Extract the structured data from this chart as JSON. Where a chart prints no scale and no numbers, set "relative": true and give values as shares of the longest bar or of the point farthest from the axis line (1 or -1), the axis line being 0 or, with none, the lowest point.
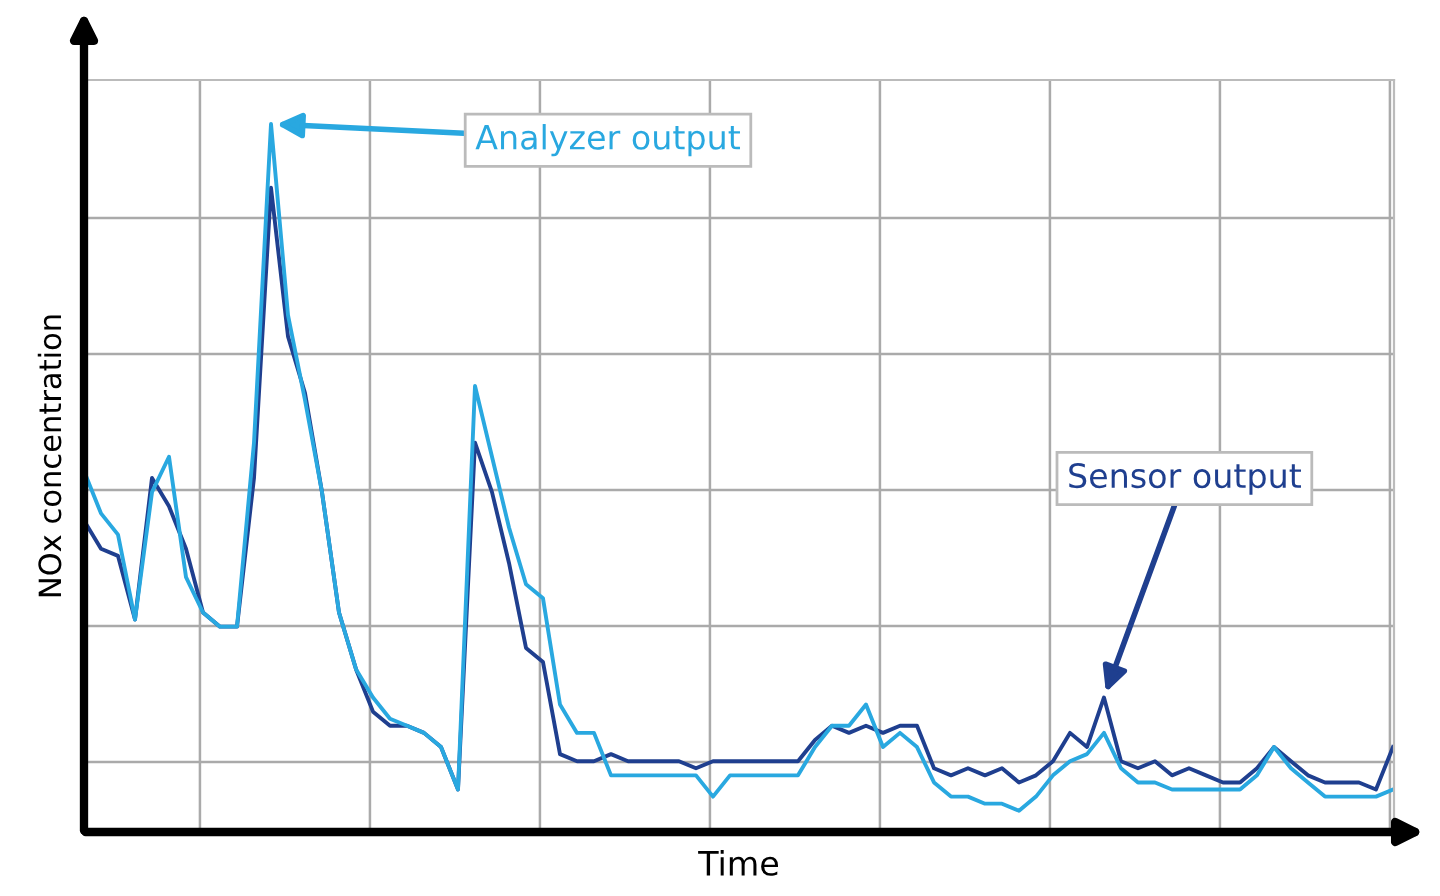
{
  "chart_data": {
    "type": "line",
    "relative": true,
    "xlabel": "Time",
    "ylabel": "NOx concentration",
    "grid": true,
    "legend": false,
    "marker": "none",
    "line_style": "solid",
    "categories": [
      null,
      null,
      null,
      null,
      null,
      null,
      null,
      null,
      null,
      null,
      null,
      null,
      null,
      null,
      null,
      null,
      null,
      null,
      null,
      null,
      null,
      null,
      null,
      null,
      null,
      null,
      null,
      null,
      null,
      null,
      null,
      null,
      null,
      null,
      null,
      null,
      null,
      null,
      null,
      null,
      null,
      null,
      null,
      null,
      null,
      null,
      null,
      null,
      null,
      null,
      null,
      null,
      null,
      null,
      null,
      null,
      null,
      null,
      null,
      null,
      null,
      null,
      null,
      null,
      null,
      null,
      null,
      null,
      null,
      null,
      null,
      null,
      null,
      null,
      null,
      null,
      null,
      null
    ],
    "series": [
      {
        "name": "Sensor output",
        "color": "#1f3f8f",
        "values": [
          0.44,
          0.4,
          0.39,
          0.3,
          0.5,
          0.46,
          0.4,
          0.31,
          0.29,
          0.29,
          0.5,
          0.91,
          0.7,
          0.62,
          0.48,
          0.31,
          0.23,
          0.17,
          0.15,
          0.15,
          0.14,
          0.12,
          0.06,
          0.55,
          0.48,
          0.38,
          0.26,
          0.24,
          0.11,
          0.1,
          0.1,
          0.11,
          0.1,
          0.1,
          0.1,
          0.1,
          0.09,
          0.1,
          0.1,
          0.1,
          0.1,
          0.1,
          0.1,
          0.13,
          0.15,
          0.14,
          0.15,
          0.14,
          0.15,
          0.15,
          0.09,
          0.08,
          0.09,
          0.08,
          0.09,
          0.07,
          0.08,
          0.1,
          0.14,
          0.12,
          0.19,
          0.1,
          0.09,
          0.1,
          0.08,
          0.09,
          0.08,
          0.07,
          0.07,
          0.09,
          0.12,
          0.1,
          0.08,
          0.07,
          0.07,
          0.07,
          0.06,
          0.12
        ]
      },
      {
        "name": "Analyzer output",
        "color": "#29a8e0",
        "values": [
          0.51,
          0.45,
          0.42,
          0.3,
          0.48,
          0.53,
          0.36,
          0.31,
          0.29,
          0.29,
          0.55,
          1.0,
          0.73,
          0.61,
          0.48,
          0.31,
          0.23,
          0.19,
          0.16,
          0.15,
          0.14,
          0.12,
          0.06,
          0.63,
          0.53,
          0.43,
          0.35,
          0.33,
          0.18,
          0.14,
          0.14,
          0.08,
          0.08,
          0.08,
          0.08,
          0.08,
          0.08,
          0.05,
          0.08,
          0.08,
          0.08,
          0.08,
          0.08,
          0.12,
          0.15,
          0.15,
          0.18,
          0.12,
          0.14,
          0.12,
          0.07,
          0.05,
          0.05,
          0.04,
          0.04,
          0.03,
          0.05,
          0.08,
          0.1,
          0.11,
          0.14,
          0.09,
          0.07,
          0.07,
          0.06,
          0.06,
          0.06,
          0.06,
          0.06,
          0.08,
          0.12,
          0.09,
          0.07,
          0.05,
          0.05,
          0.05,
          0.05,
          0.06
        ]
      }
    ]
  }
}
